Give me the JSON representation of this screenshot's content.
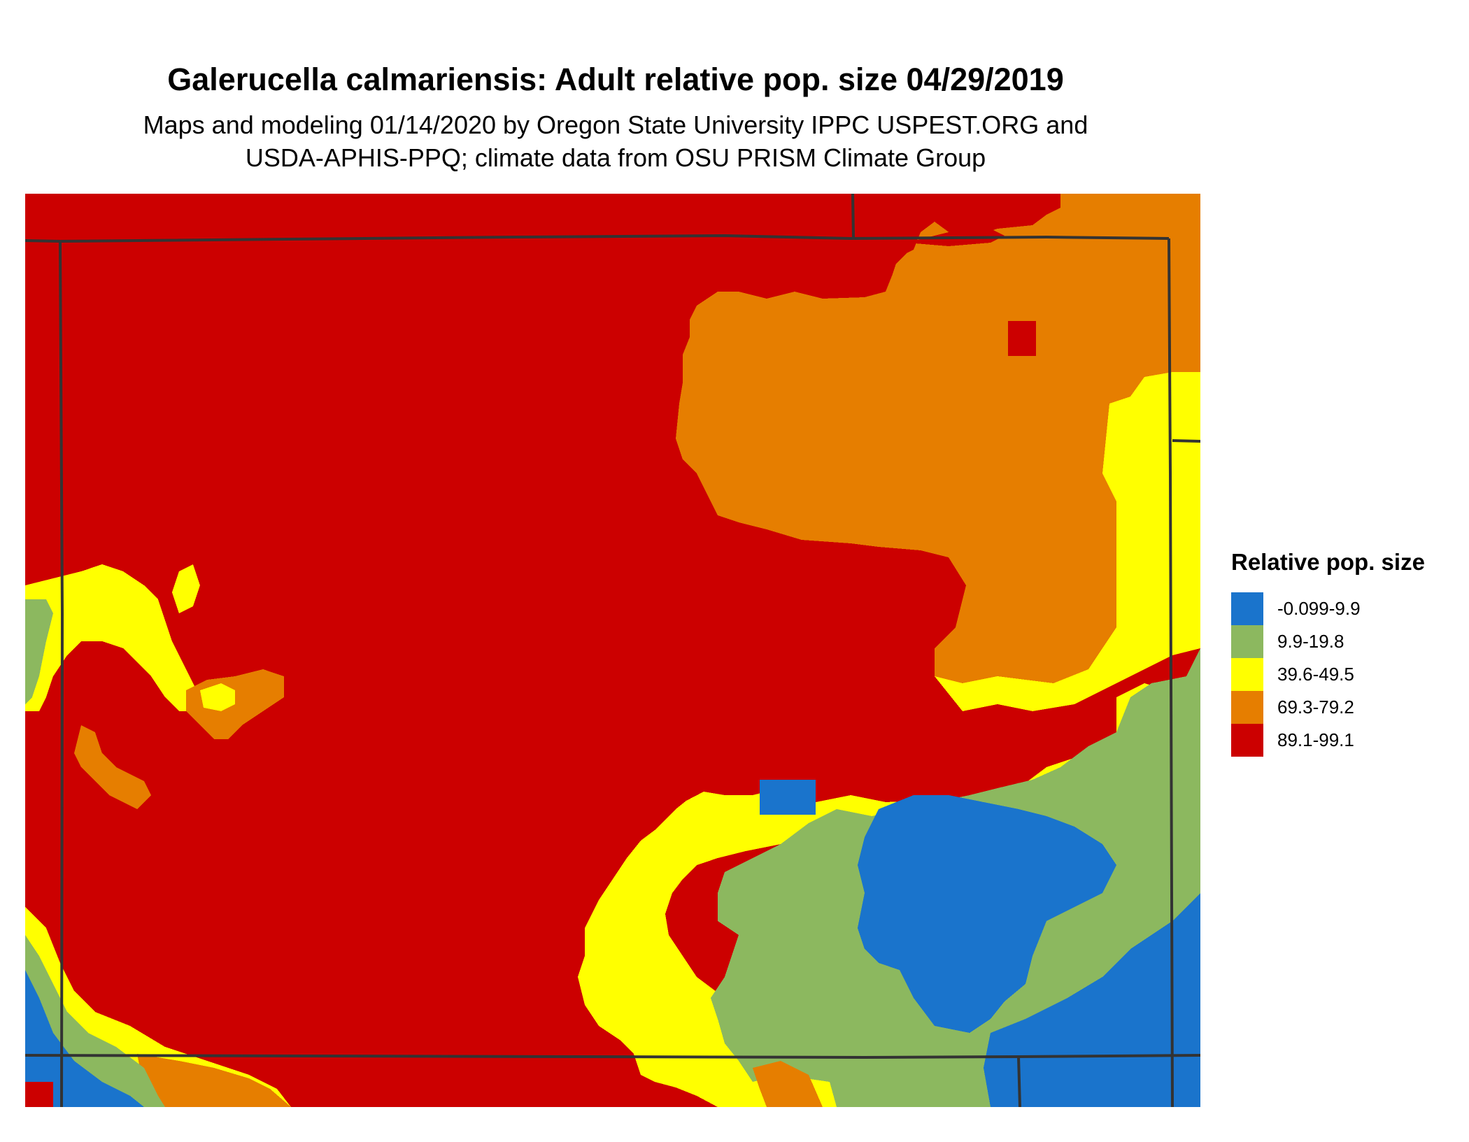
{
  "map": {
    "title": "Galerucella calmariensis: Adult relative pop. size 04/29/2019",
    "subtitle_line1": "Maps and modeling 01/14/2020 by Oregon State University IPPC USPEST.ORG and",
    "subtitle_line2": "USDA-APHIS-PPQ; climate data from OSU PRISM Climate Group",
    "colors": {
      "red": "#cc0000",
      "orange": "#e67e00",
      "yellow": "#ffff00",
      "green": "#8cb85f",
      "blue": "#1a74cc",
      "boundary": "#333333"
    }
  },
  "legend": {
    "title": "Relative pop. size",
    "items": [
      {
        "label": "-0.099-9.9",
        "color": "#1a74cc"
      },
      {
        "label": "9.9-19.8",
        "color": "#8cb85f"
      },
      {
        "label": "39.6-49.5",
        "color": "#ffff00"
      },
      {
        "label": "69.3-79.2",
        "color": "#e67e00"
      },
      {
        "label": "89.1-99.1",
        "color": "#cc0000"
      }
    ]
  }
}
